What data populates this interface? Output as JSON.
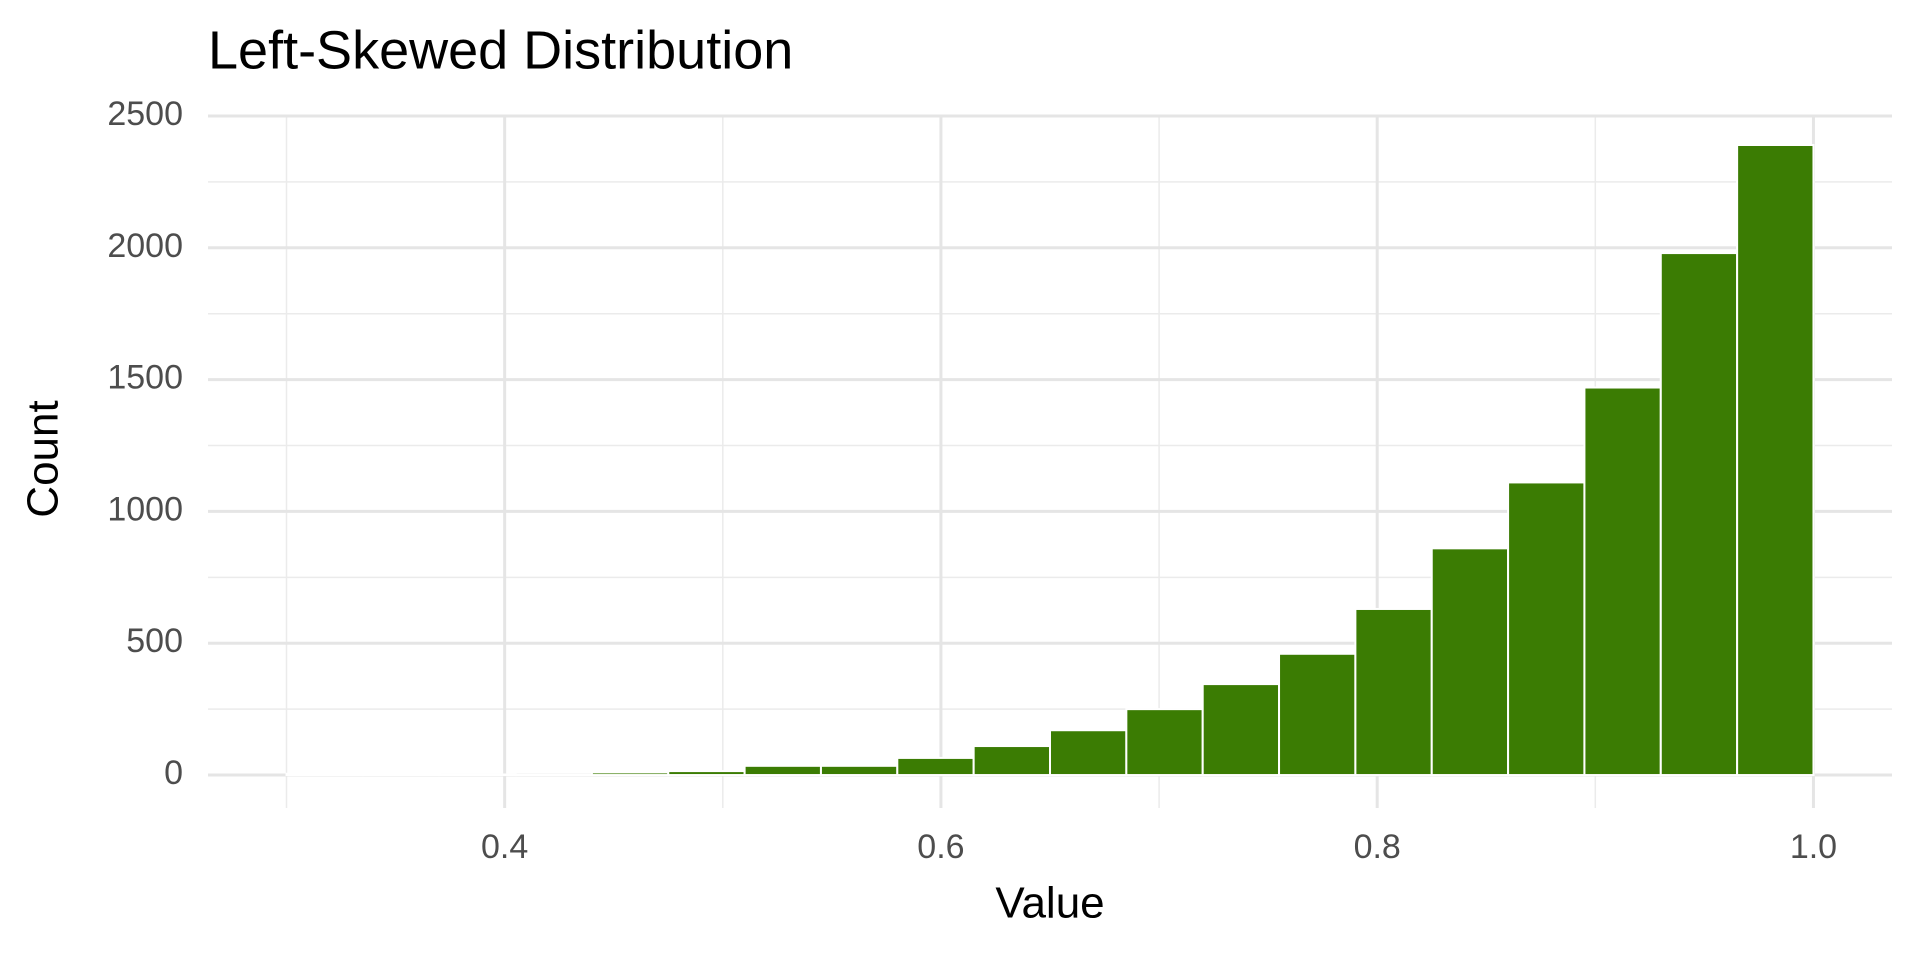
{
  "chart_data": {
    "type": "histogram",
    "title": "Left-Skewed Distribution",
    "x_label": "Value",
    "y_label": "Count",
    "bins": [
      0.3,
      0.335,
      0.37,
      0.405,
      0.44,
      0.475,
      0.51,
      0.545,
      0.58,
      0.615,
      0.65,
      0.685,
      0.72,
      0.755,
      0.79,
      0.825,
      0.86,
      0.895,
      0.93,
      0.965,
      1.0
    ],
    "values": [
      5,
      3,
      2,
      1,
      10,
      15,
      35,
      35,
      65,
      110,
      170,
      250,
      345,
      460,
      630,
      860,
      1110,
      1470,
      1980,
      2390
    ],
    "color": "#3b7c03",
    "xlim": [
      0.264,
      1.036
    ],
    "xticks": [
      0.4,
      0.6,
      0.8,
      {
        "value": 1.0,
        "label": "1.0"
      }
    ],
    "ylim": [
      -125,
      2500
    ],
    "yticks": [
      0,
      500,
      1000,
      1500,
      2000,
      2500
    ],
    "grid": true
  }
}
